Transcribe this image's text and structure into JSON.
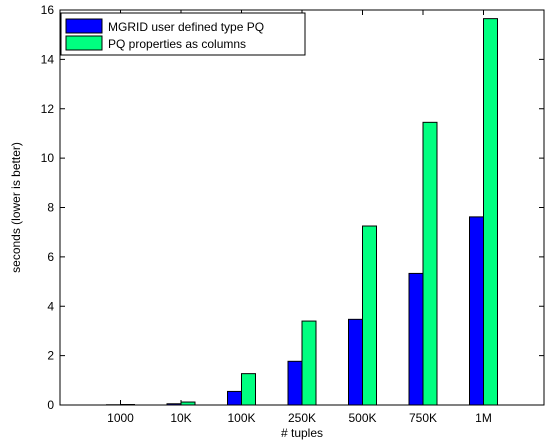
{
  "chart_data": {
    "type": "bar",
    "title": "",
    "xlabel": "# tuples",
    "ylabel": "seconds (lower is better)",
    "categories": [
      "1000",
      "10K",
      "100K",
      "250K",
      "500K",
      "750K",
      "1M"
    ],
    "ylim": [
      0,
      16
    ],
    "yticks": [
      0,
      2,
      4,
      6,
      8,
      10,
      12,
      14,
      16
    ],
    "grid": false,
    "legend_position": "top-left",
    "series": [
      {
        "name": "MGRID user defined type PQ",
        "color": "#0000ff",
        "values": [
          0.01,
          0.05,
          0.55,
          1.77,
          3.47,
          5.33,
          7.62
        ]
      },
      {
        "name": "PQ properties as columns",
        "color": "#00ff80",
        "values": [
          0.02,
          0.12,
          1.27,
          3.4,
          7.25,
          11.45,
          15.65
        ]
      }
    ]
  }
}
